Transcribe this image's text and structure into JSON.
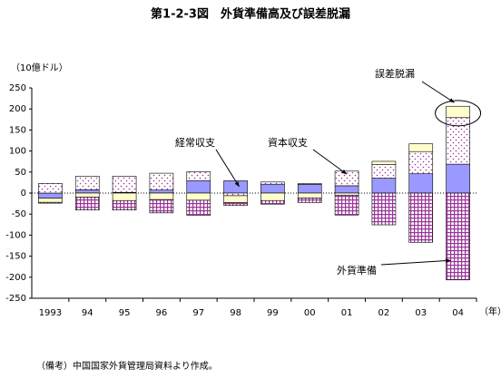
{
  "chart_data": {
    "type": "bar",
    "stacked": true,
    "title": "第1-2-3図　外貨準備高及び誤差脱漏",
    "y_unit": "（10億ドル）",
    "x_unit": "（年）",
    "note": "（備考）中国国家外貨管理局資料より作成。",
    "categories": [
      "1993",
      "94",
      "95",
      "96",
      "97",
      "98",
      "99",
      "00",
      "01",
      "02",
      "03",
      "04"
    ],
    "series": [
      {
        "name": "経常収支",
        "color": "#9999ff",
        "pattern": "solid",
        "values": [
          -12,
          7.7,
          1.6,
          7.2,
          29.7,
          29.3,
          21.1,
          20.5,
          17.4,
          35.4,
          45.9,
          68.7
        ]
      },
      {
        "name": "資本収支",
        "color": "#993399",
        "pattern": "dots",
        "values": [
          23,
          32.6,
          38.7,
          40,
          21,
          -6.3,
          5.2,
          2,
          34.8,
          32.3,
          52.8,
          110.7
        ]
      },
      {
        "name": "誤差脱漏",
        "color": "#ffffcc",
        "pattern": "solid",
        "values": [
          -10,
          -9.8,
          -17.8,
          -15.5,
          -17,
          -16.6,
          -17.8,
          -11.9,
          -4.9,
          7.8,
          18.4,
          27
        ]
      },
      {
        "name": "外貨準備",
        "color": "#993399",
        "pattern": "checker",
        "values": [
          -2,
          -30.5,
          -22.5,
          -31.6,
          -35.7,
          -6.4,
          -8.5,
          -10.5,
          -47.3,
          -75.5,
          -117,
          -206.4
        ]
      }
    ],
    "ylim": [
      -250,
      250
    ],
    "yticks": [
      -250,
      -200,
      -150,
      -100,
      -50,
      0,
      50,
      100,
      150,
      200,
      250
    ]
  }
}
